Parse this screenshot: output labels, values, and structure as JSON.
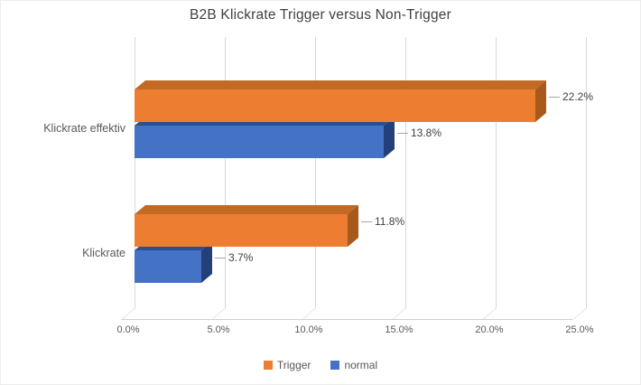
{
  "chart_data": {
    "type": "bar",
    "style": "3d",
    "orientation": "horizontal",
    "title": "B2B Klickrate Trigger versus Non-Trigger",
    "categories": [
      "Klickrate effektiv",
      "Klickrate"
    ],
    "series": [
      {
        "name": "Trigger",
        "color": "#ED7D31",
        "color_top": "#C26A24",
        "color_side": "#A85A1C",
        "values": [
          22.2,
          11.8
        ],
        "labels": [
          "22.2%",
          "11.8%"
        ]
      },
      {
        "name": "normal",
        "color": "#4472C4",
        "color_top": "#2D4F8F",
        "color_side": "#24407A",
        "values": [
          13.8,
          3.7
        ],
        "labels": [
          "13.8%",
          "3.7%"
        ]
      }
    ],
    "x_ticks": [
      "0.0%",
      "5.0%",
      "10.0%",
      "15.0%",
      "20.0%",
      "25.0%"
    ],
    "xlim": [
      0,
      25
    ],
    "grid": true,
    "legend_position": "bottom"
  }
}
